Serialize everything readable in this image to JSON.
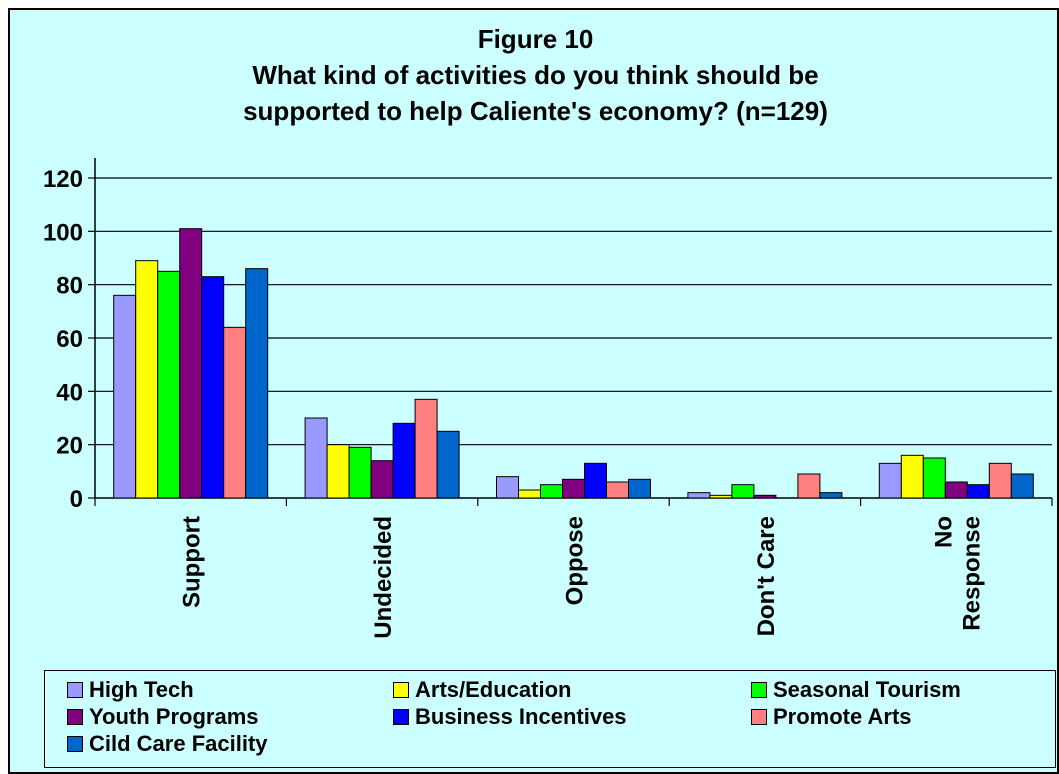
{
  "chart_data": {
    "type": "bar",
    "title": "Figure 10",
    "subtitle_lines": [
      "What kind of activities do you think should be",
      "supported to help Caliente's economy? (n=129)"
    ],
    "categories": [
      [
        "Support"
      ],
      [
        "Undecided"
      ],
      [
        "Oppose"
      ],
      [
        "Don't Care"
      ],
      [
        "No",
        "Response"
      ]
    ],
    "y_ticks": [
      "0",
      "20",
      "40",
      "60",
      "80",
      "100",
      "120"
    ],
    "ylim": [
      0,
      120
    ],
    "grid": true,
    "legend_position": "bottom",
    "series": [
      {
        "name": "High Tech",
        "color": "#9999ff",
        "values": [
          76,
          30,
          8,
          2,
          13
        ]
      },
      {
        "name": "Arts/Education",
        "color": "#ffff00",
        "values": [
          89,
          20,
          3,
          1,
          16
        ]
      },
      {
        "name": "Seasonal Tourism",
        "color": "#00ff00",
        "values": [
          85,
          19,
          5,
          5,
          15
        ]
      },
      {
        "name": "Youth Programs",
        "color": "#800080",
        "values": [
          101,
          14,
          7,
          1,
          6
        ]
      },
      {
        "name": "Business Incentives",
        "color": "#0000ff",
        "values": [
          83,
          28,
          13,
          0,
          5
        ]
      },
      {
        "name": "Promote Arts",
        "color": "#ff8080",
        "values": [
          64,
          37,
          6,
          9,
          13
        ]
      },
      {
        "name": "Cild Care Facility",
        "color": "#0066cc",
        "values": [
          86,
          25,
          7,
          2,
          9
        ]
      }
    ]
  }
}
